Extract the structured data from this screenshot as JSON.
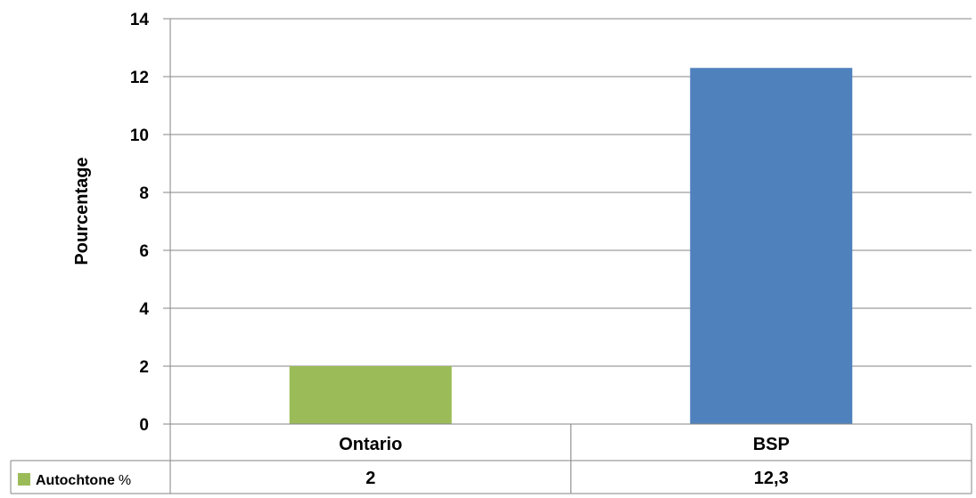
{
  "chart_data": {
    "type": "bar",
    "title": "",
    "xlabel": "",
    "ylabel": "Pourcentage",
    "ylim": [
      0,
      14
    ],
    "yticks": [
      "0",
      "2",
      "4",
      "6",
      "8",
      "10",
      "12",
      "14"
    ],
    "categories": [
      "Ontario",
      "BSP"
    ],
    "values": [
      2,
      12.3
    ],
    "bar_colors": [
      "#9BBB59",
      "#4F81BD"
    ],
    "grid": true,
    "legend_position": "bottom data table",
    "data_table": {
      "series_name": "Autochtone",
      "series_unit": "%",
      "swatch_color": "#9BBB59",
      "value_labels": [
        "2",
        "12,3"
      ]
    }
  }
}
